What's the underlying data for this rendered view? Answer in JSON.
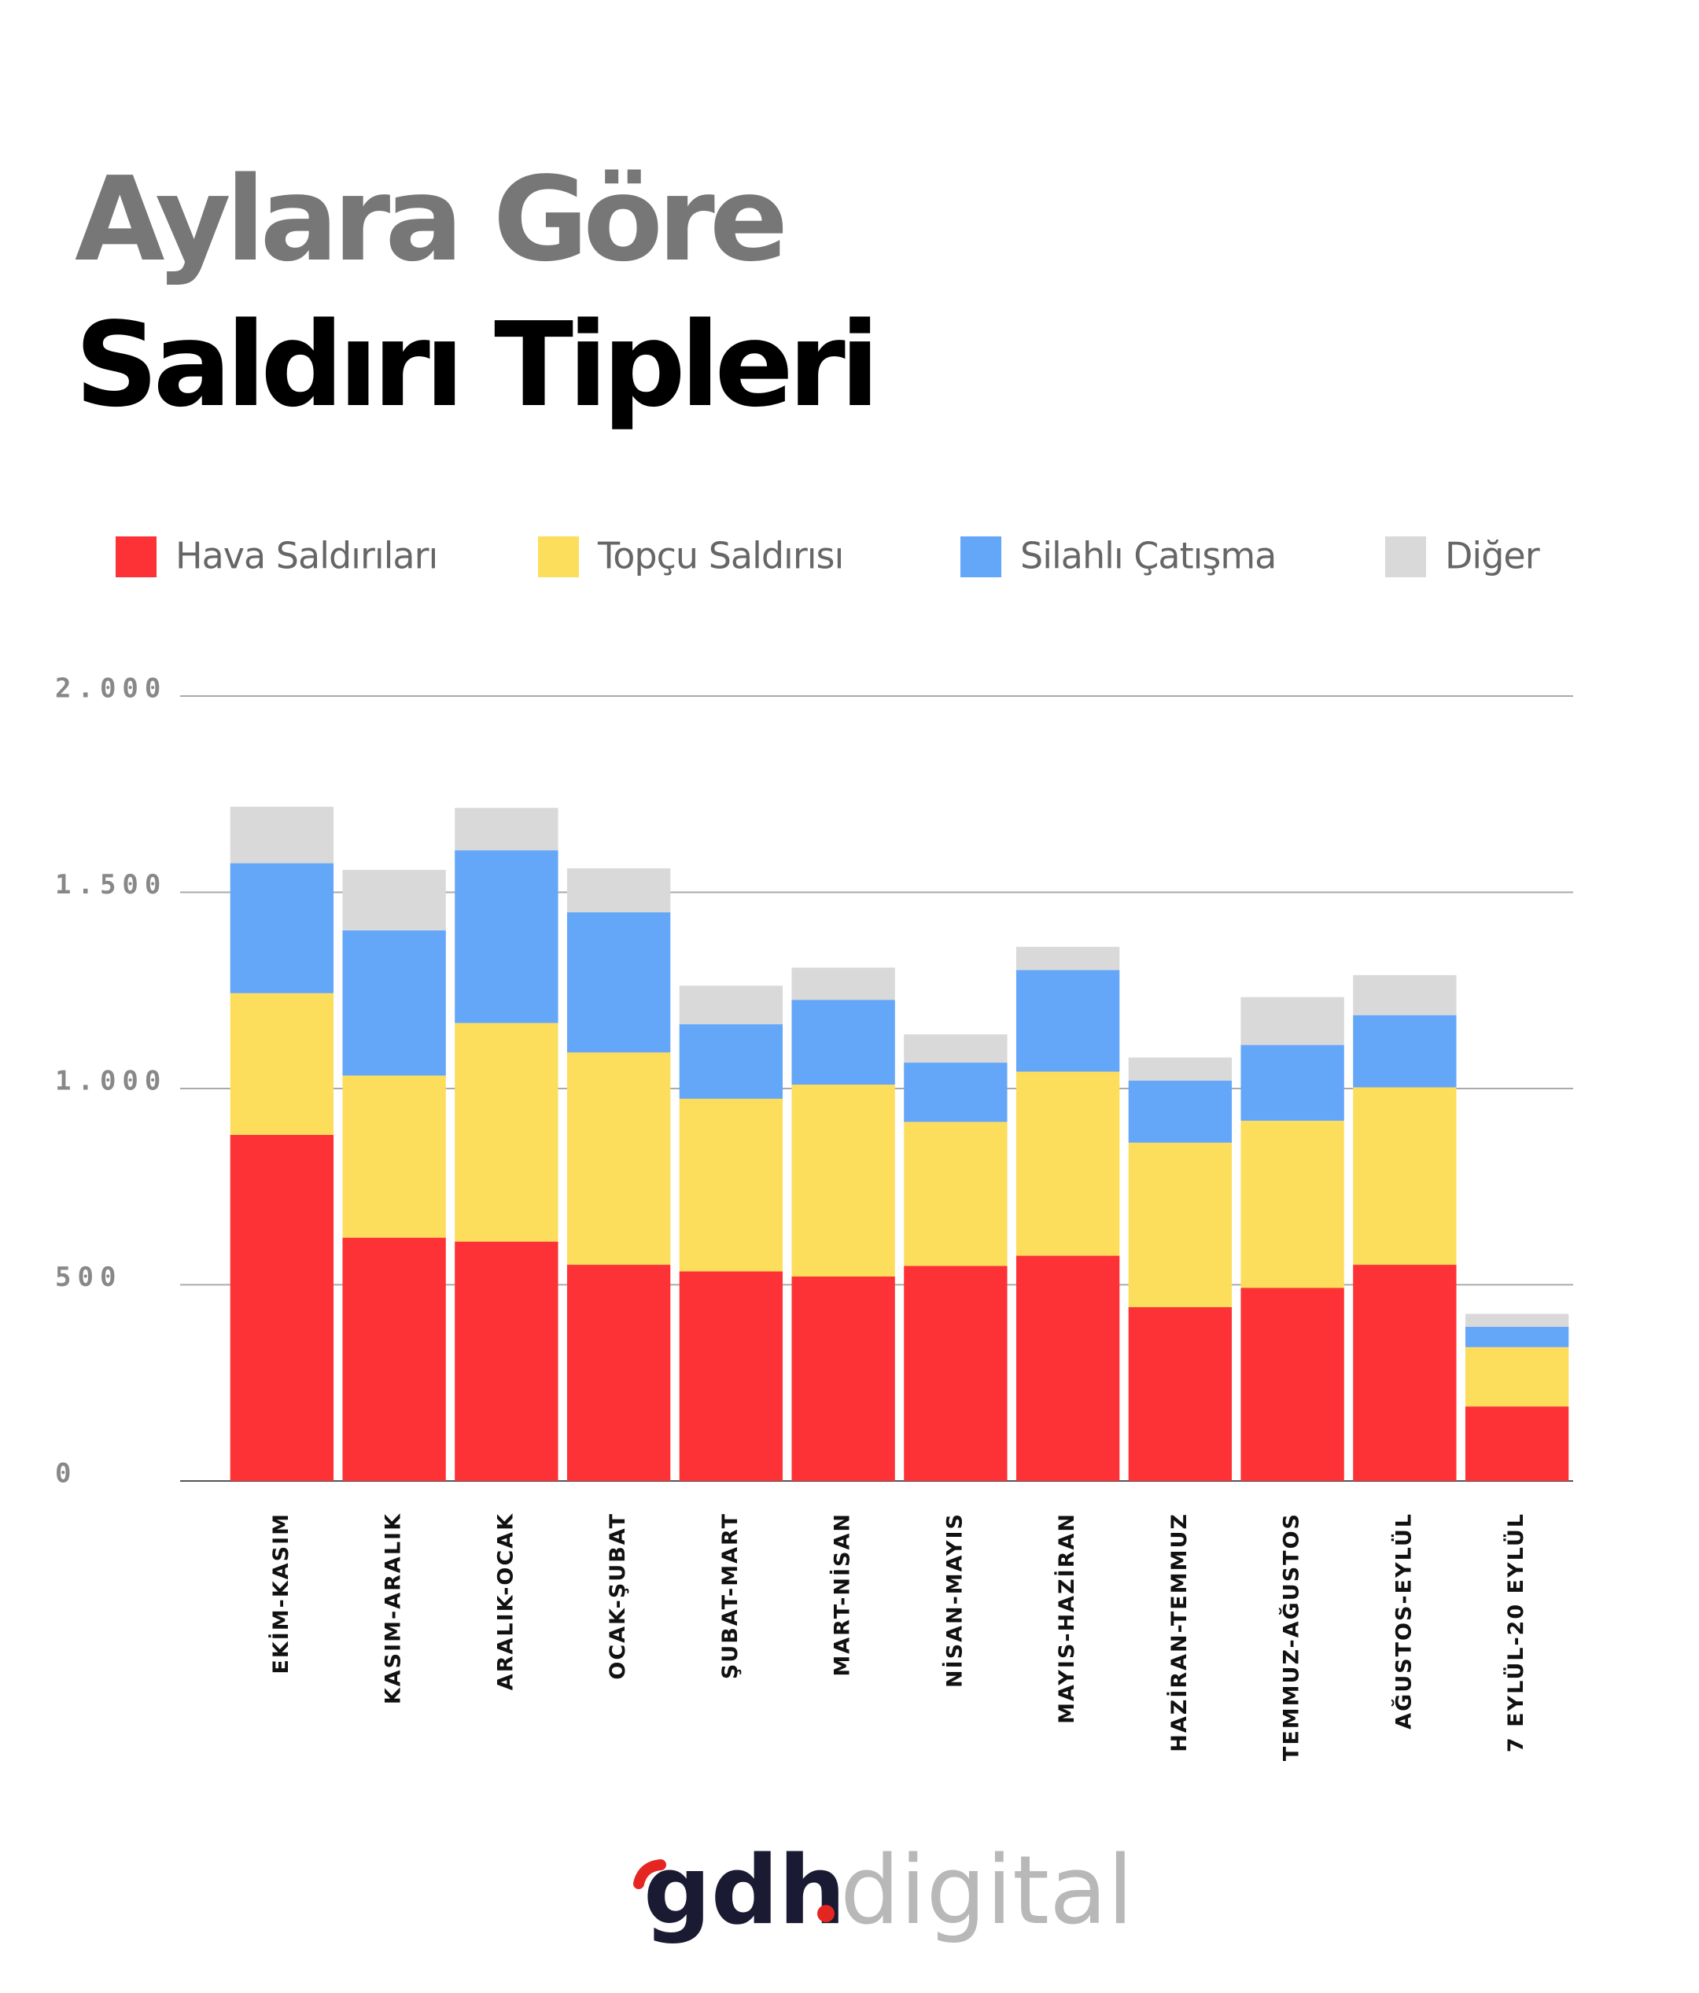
{
  "title_line1": "Aylara Göre",
  "title_line2": "Saldırı Tipleri",
  "chart_data": {
    "type": "stacked-bar",
    "categories": [
      "EKİM-KASIM",
      "KASIM-ARALIK",
      "ARALIK-OCAK",
      "OCAK-ŞUBAT",
      "ŞUBAT-MART",
      "MART-NİSAN",
      "NİSAN-MAYIS",
      "MAYIS-HAZİRAN",
      "HAZİRAN-TEMMUZ",
      "TEMMUZ-AĞUSTOS",
      "AĞUSTOS-EYLÜL",
      "7 EYLÜL-20 EYLÜL"
    ],
    "series": [
      {
        "name": "Hava Saldırıları",
        "color": "#fd3236",
        "values": [
          882,
          620,
          610,
          551,
          534,
          521,
          548,
          574,
          443,
          492,
          551,
          190
        ]
      },
      {
        "name": "Topçu Saldırısı",
        "color": "#fddd5c",
        "values": [
          361,
          413,
          557,
          541,
          440,
          489,
          367,
          469,
          419,
          426,
          452,
          151
        ]
      },
      {
        "name": "Silahlı Çatışma",
        "color": "#64a6f8",
        "values": [
          331,
          370,
          440,
          357,
          190,
          216,
          151,
          259,
          158,
          193,
          184,
          52
        ]
      },
      {
        "name": "Diğer",
        "color": "#d9d9d9",
        "values": [
          144,
          154,
          108,
          112,
          98,
          82,
          72,
          59,
          59,
          122,
          102,
          33
        ]
      }
    ],
    "ylim": [
      0,
      2000
    ],
    "yticks": [
      0,
      500,
      {
        "value": 1000,
        "label": "1.000"
      },
      {
        "value": 1500,
        "label": "1.500"
      },
      {
        "value": 2000,
        "label": "2.000"
      }
    ],
    "grid": true,
    "legend": "top"
  },
  "logo": {
    "brand": "gdh",
    "suffix": "digital"
  }
}
